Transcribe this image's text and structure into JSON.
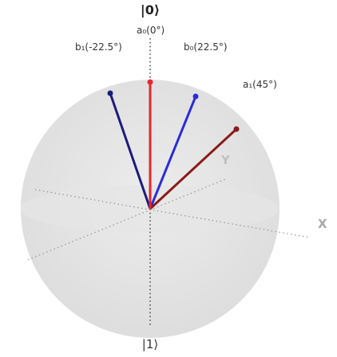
{
  "diagram": {
    "kets": {
      "top": "|0⟩",
      "bottom": "|1⟩"
    },
    "axes": {
      "x": "X",
      "y": "Y"
    },
    "vectors": [
      {
        "id": "a0",
        "label": "a₀(0°)",
        "angle_deg": 0,
        "color": "#e8262b"
      },
      {
        "id": "a1",
        "label": "a₁(45°)",
        "angle_deg": 45,
        "color": "#8b1a1a"
      },
      {
        "id": "b0",
        "label": "b₀(22.5°)",
        "angle_deg": 22.5,
        "color": "#2b2bdc"
      },
      {
        "id": "b1",
        "label": "b₁(-22.5°)",
        "angle_deg": -22.5,
        "color": "#1c1c7a"
      }
    ],
    "colors": {
      "sphere": "#e4e4e4",
      "axis_dots": "#9a9a9a",
      "axis_label": "#b0b0b0"
    }
  }
}
